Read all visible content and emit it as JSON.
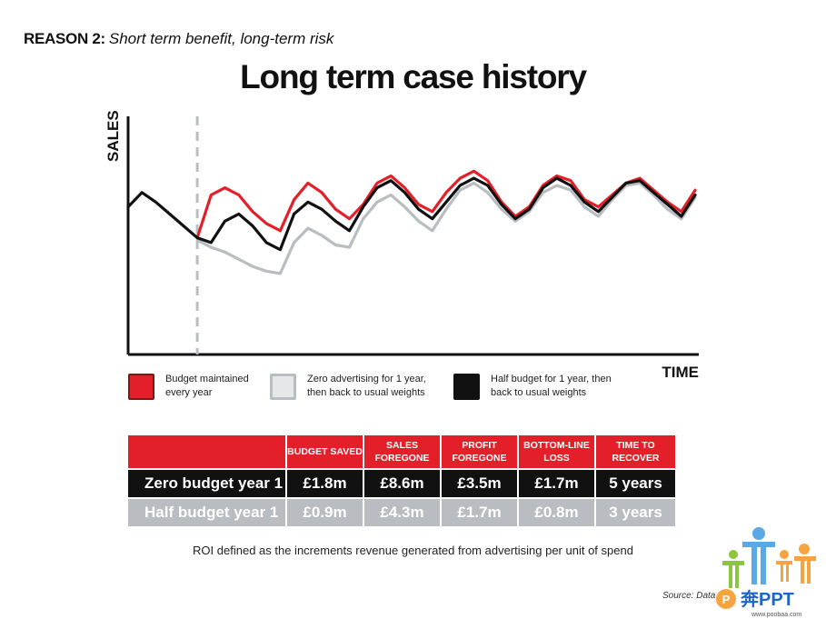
{
  "header": {
    "reason_label": "REASON 2:",
    "reason_text": "Short term benefit, long-term risk",
    "title": "Long term case history"
  },
  "chart_data": {
    "type": "line",
    "ylabel": "SALES",
    "xlabel": "TIME",
    "grid": false,
    "x_ticks": false,
    "y_ticks": false,
    "divider_at_x": 15,
    "x": [
      0,
      3,
      6,
      9,
      12,
      15,
      18,
      21,
      24,
      27,
      30,
      33,
      36,
      39,
      42,
      45,
      48,
      51,
      54,
      57,
      60,
      63,
      66,
      69,
      72,
      75,
      78,
      81,
      84,
      87,
      90,
      93,
      96,
      99,
      102,
      105,
      108,
      111,
      114,
      117,
      120,
      123
    ],
    "pre_period": {
      "x": [
        0,
        3,
        6,
        9,
        12,
        15
      ],
      "values": [
        62,
        68,
        64,
        59,
        54,
        49
      ]
    },
    "series": [
      {
        "name": "Budget maintained every year",
        "color": "#e3202a",
        "values": [
          null,
          null,
          null,
          null,
          null,
          49,
          67,
          70,
          67,
          60,
          55,
          52,
          65,
          72,
          68,
          61,
          57,
          63,
          72,
          75,
          70,
          63,
          60,
          68,
          74,
          77,
          73,
          64,
          58,
          62,
          71,
          75,
          73,
          65,
          62,
          67,
          72,
          74,
          69,
          64,
          60,
          69
        ]
      },
      {
        "name": "Zero advertising for 1 year, then back to usual weights",
        "color": "#b9bcc0",
        "values": [
          null,
          null,
          null,
          null,
          null,
          48,
          45,
          43,
          40,
          37,
          35,
          34,
          47,
          53,
          50,
          46,
          45,
          57,
          64,
          67,
          62,
          56,
          52,
          61,
          69,
          72,
          68,
          61,
          56,
          60,
          68,
          71,
          69,
          62,
          58,
          65,
          71,
          72,
          67,
          61,
          57,
          66
        ]
      },
      {
        "name": "Half budget for 1 year, then back to usual weights",
        "color": "#111111",
        "values": [
          null,
          null,
          null,
          null,
          null,
          49,
          47,
          56,
          59,
          54,
          47,
          44,
          59,
          64,
          61,
          56,
          52,
          62,
          70,
          73,
          68,
          61,
          57,
          64,
          71,
          74,
          71,
          63,
          57,
          61,
          70,
          74,
          71,
          64,
          60,
          66,
          72,
          73,
          68,
          63,
          58,
          67
        ]
      }
    ],
    "legend": "bottom"
  },
  "legend": [
    {
      "label": "Budget maintained every year",
      "color": "#e3202a"
    },
    {
      "label": "Zero advertising for 1 year, then back to usual weights",
      "color": "#b9bcc0"
    },
    {
      "label": "Half budget for 1 year, then back to usual weights",
      "color": "#111111"
    }
  ],
  "table": {
    "headers": [
      "BUDGET SAVED",
      "SALES FOREGONE",
      "PROFIT FOREGONE",
      "BOTTOM-LINE LOSS",
      "TIME TO RECOVER"
    ],
    "rows": [
      {
        "label": "Zero budget year 1",
        "cells": [
          "£1.8m",
          "£8.6m",
          "£3.5m",
          "£1.7m",
          "5 years"
        ]
      },
      {
        "label": "Half budget year 1",
        "cells": [
          "£0.9m",
          "£4.3m",
          "£1.7m",
          "£0.8m",
          "3 years"
        ]
      }
    ]
  },
  "footnote": "ROI defined as the increments revenue generated from advertising per unit of spend",
  "source": "Source: Data",
  "watermark": {
    "brand": "奔PPT",
    "url": "www.poobaa.com"
  }
}
